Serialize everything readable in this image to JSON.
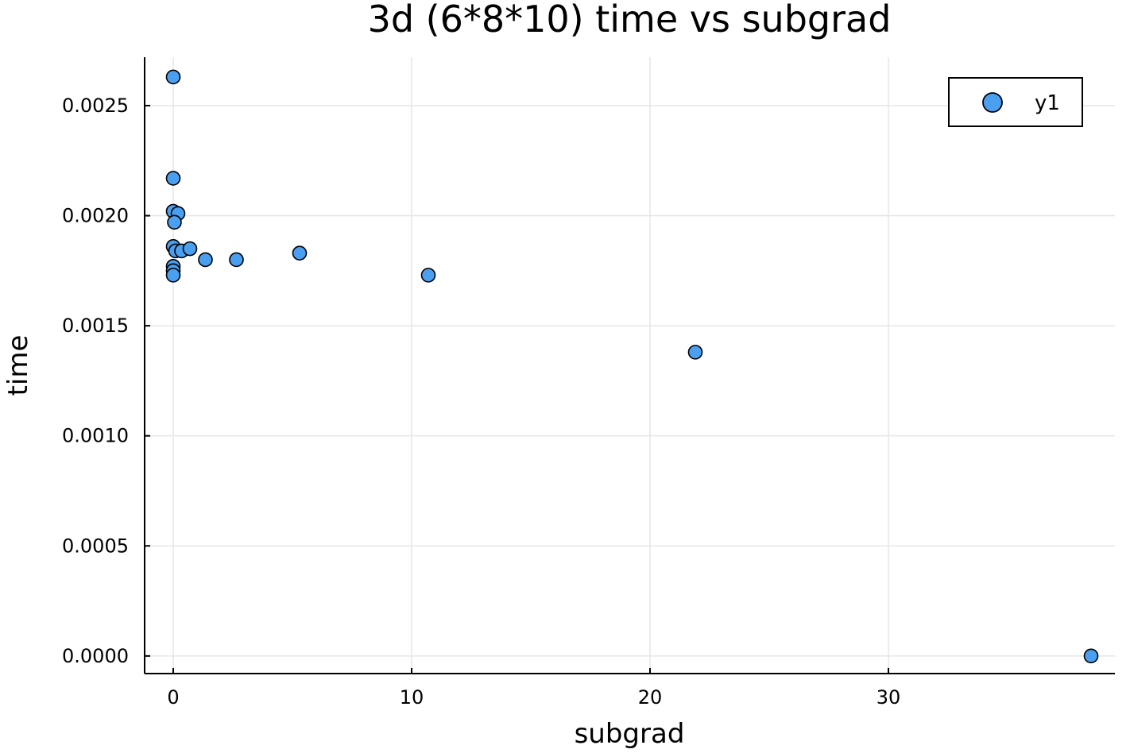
{
  "chart_data": {
    "type": "scatter",
    "title": "3d (6*8*10) time vs subgrad",
    "xlabel": "subgrad",
    "ylabel": "time",
    "xlim": [
      -1.2,
      39.5
    ],
    "ylim": [
      -8e-05,
      0.00272
    ],
    "xticks": [
      0,
      10,
      20,
      30
    ],
    "xtick_labels": [
      "0",
      "10",
      "20",
      "30"
    ],
    "yticks": [
      0.0,
      0.0005,
      0.001,
      0.0015,
      0.002,
      0.0025
    ],
    "ytick_labels": [
      "0.0000",
      "0.0005",
      "0.0010",
      "0.0015",
      "0.0020",
      "0.0025"
    ],
    "grid": true,
    "legend": {
      "position": "top-right",
      "entries": [
        "y1"
      ]
    },
    "series": [
      {
        "name": "y1",
        "color": "#4a9ff0",
        "marker": "circle",
        "x": [
          0.0,
          0.0,
          0.0,
          0.2,
          0.05,
          0.0,
          0.1,
          0.35,
          0.7,
          0.0,
          0.0,
          0.0,
          1.35,
          2.65,
          5.3,
          10.7,
          21.9,
          38.5
        ],
        "y": [
          0.00263,
          0.00217,
          0.00202,
          0.00201,
          0.00197,
          0.00186,
          0.00184,
          0.00184,
          0.00185,
          0.00177,
          0.00175,
          0.00173,
          0.0018,
          0.0018,
          0.00183,
          0.00173,
          0.00138,
          0.0
        ]
      }
    ]
  }
}
